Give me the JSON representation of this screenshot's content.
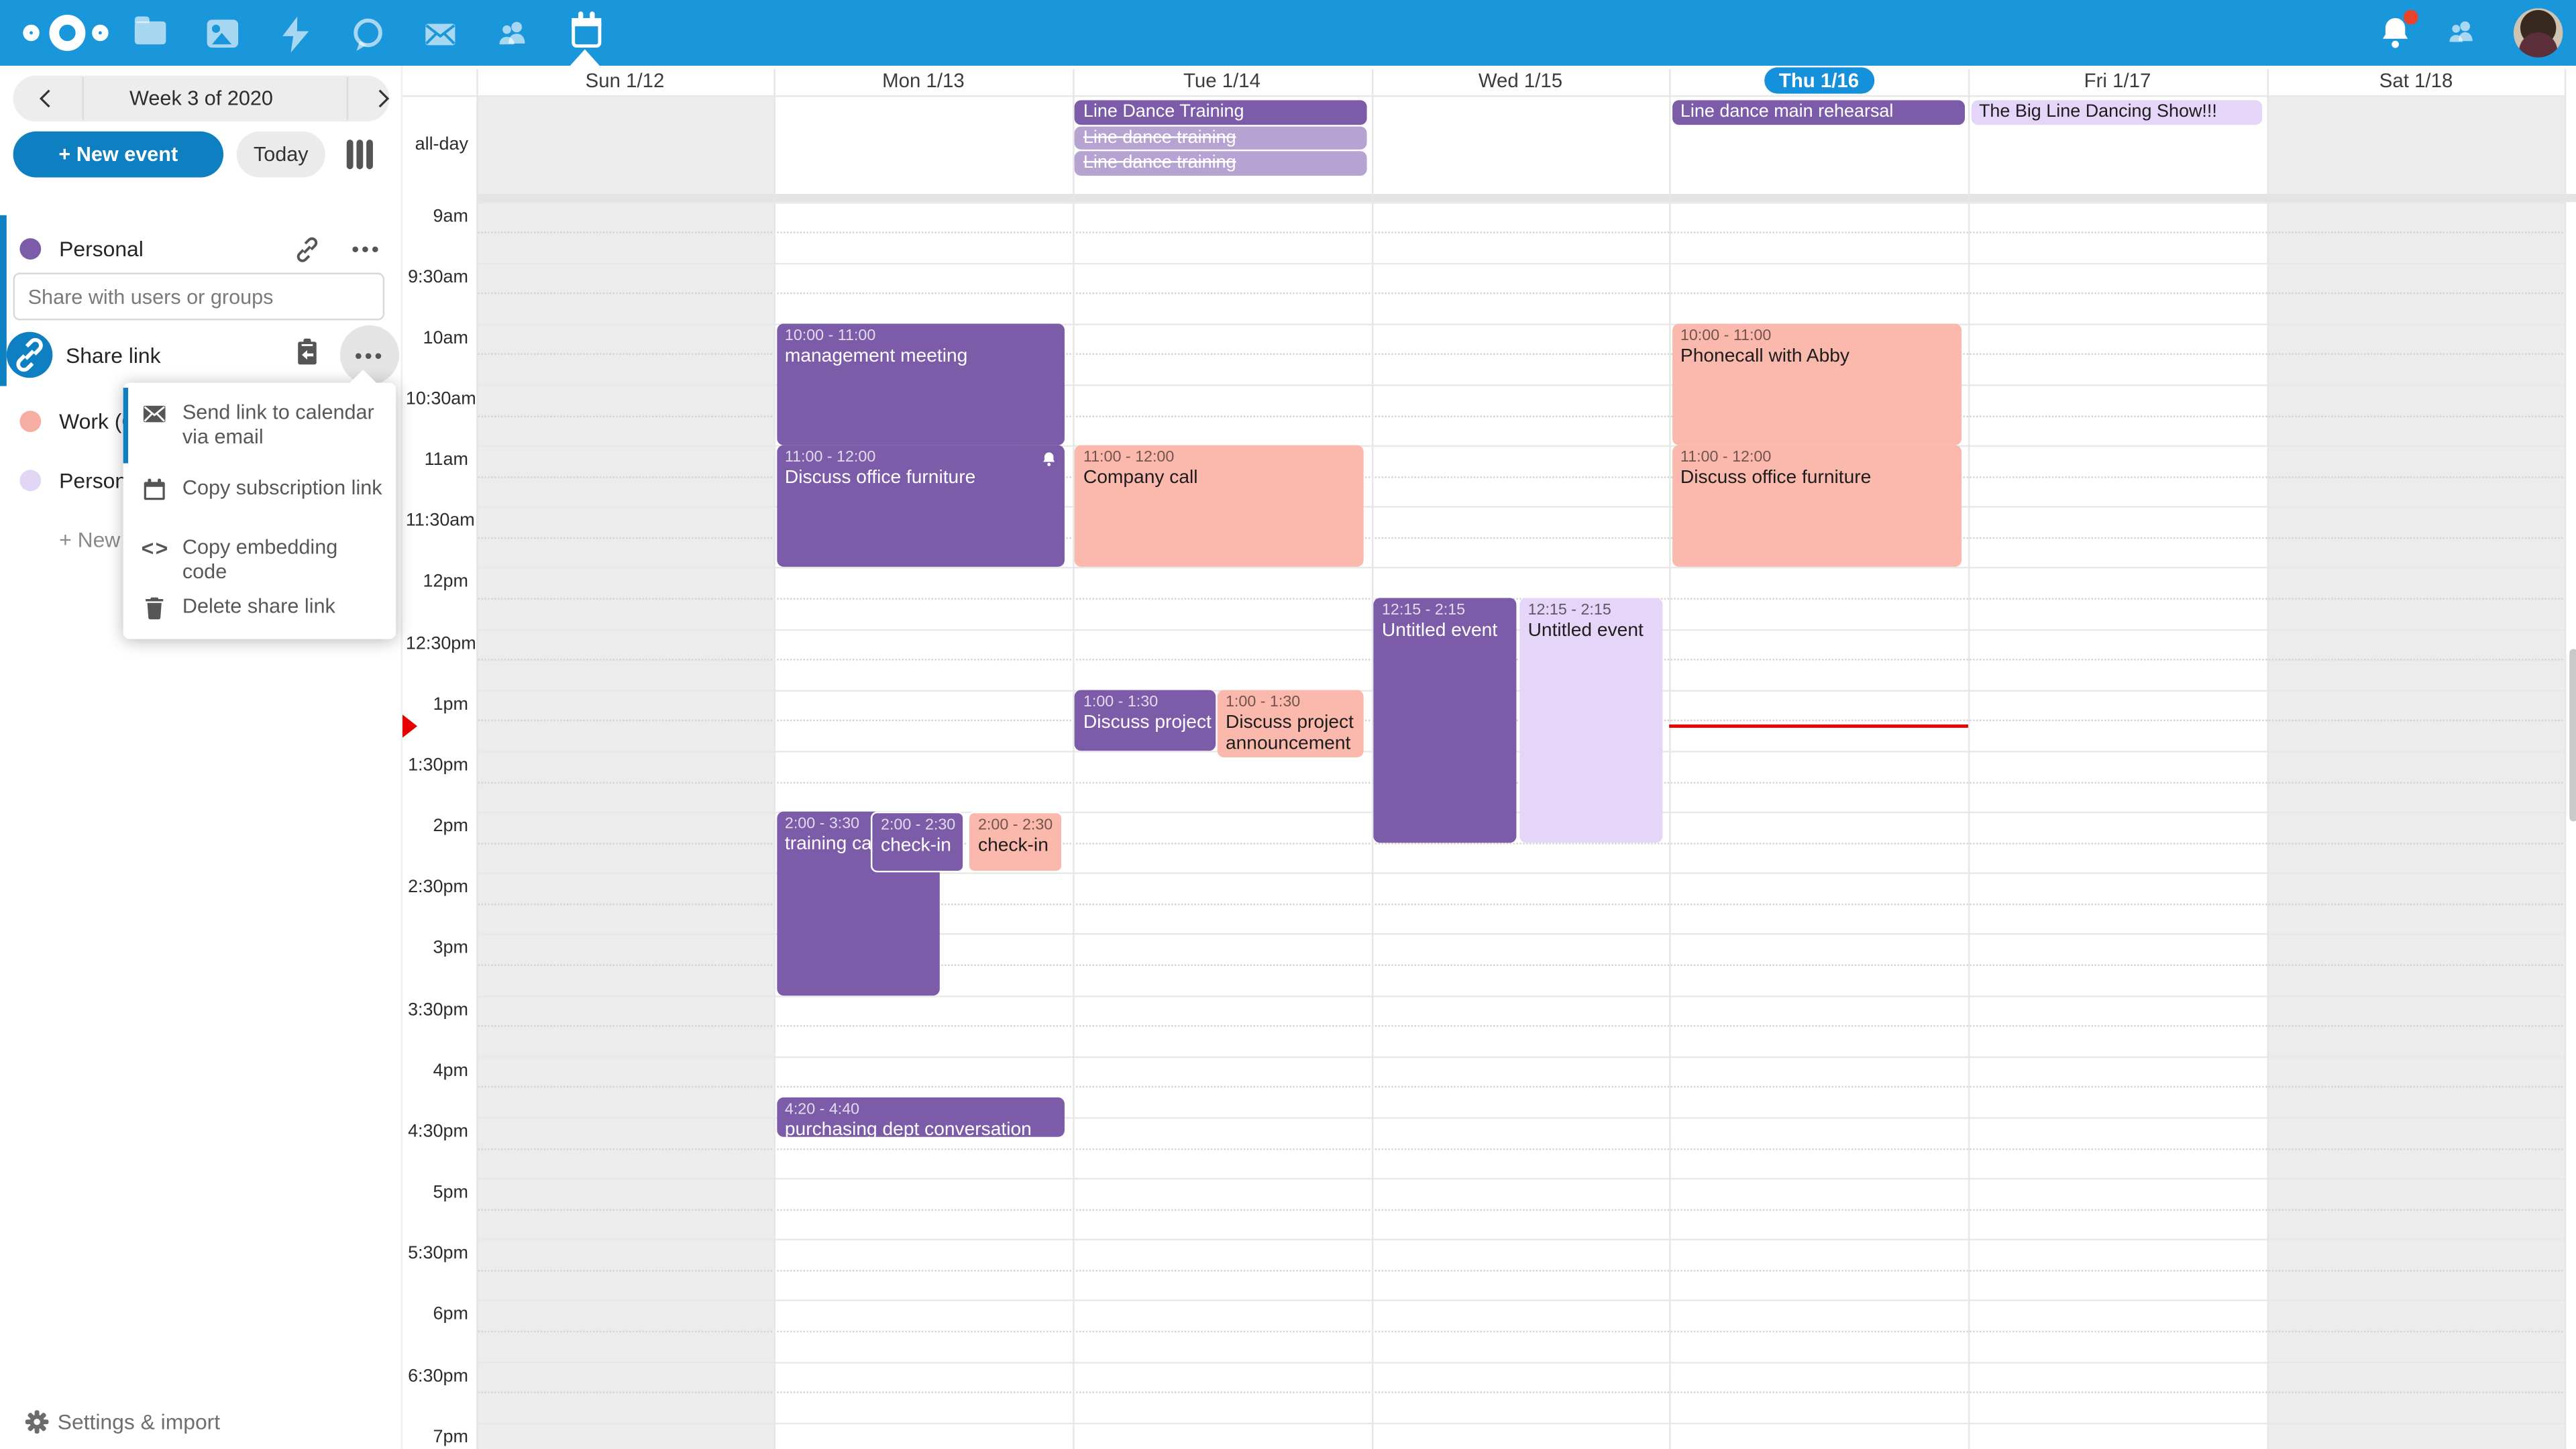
{
  "topbar": {
    "apps": [
      {
        "name": "files"
      },
      {
        "name": "photos"
      },
      {
        "name": "activity"
      },
      {
        "name": "talk"
      },
      {
        "name": "mail"
      },
      {
        "name": "contacts"
      },
      {
        "name": "calendar",
        "active": true
      }
    ],
    "has_notification_badge": true
  },
  "sidebar": {
    "week_label": "Week 3 of 2020",
    "new_event_label": "+ New event",
    "today_label": "Today",
    "personal_calendar": {
      "label": "Personal",
      "color": "#7c5ca8"
    },
    "share_input_placeholder": "Share with users or groups",
    "share_link_label": "Share link",
    "share_menu": {
      "items": [
        {
          "icon": "email-icon",
          "label": "Send link to calendar via email",
          "active": true
        },
        {
          "icon": "calendar-icon",
          "label": "Copy subscription link"
        },
        {
          "icon": "code-icon",
          "label": "Copy embedding code"
        },
        {
          "icon": "trash-icon",
          "label": "Delete share link"
        }
      ]
    },
    "other_calendars": [
      {
        "label": "Work (C",
        "color": "#f6aea3"
      },
      {
        "label": "Persona",
        "color": "#e1d6f6"
      }
    ],
    "new_calendar_label": "+ New c",
    "settings_label": "Settings & import"
  },
  "calendar": {
    "days": [
      {
        "label": "Sun 1/12"
      },
      {
        "label": "Mon 1/13"
      },
      {
        "label": "Tue 1/14"
      },
      {
        "label": "Wed 1/15"
      },
      {
        "label": "Thu 1/16"
      },
      {
        "label": "Fri 1/17"
      },
      {
        "label": "Sat 1/18"
      }
    ],
    "today_index": 4,
    "weekend_days": [
      0,
      6
    ],
    "allday_label": "all-day",
    "times": [
      "9am",
      "9:30am",
      "10am",
      "10:30am",
      "11am",
      "11:30am",
      "12pm",
      "12:30pm",
      "1pm",
      "1:30pm",
      "2pm",
      "2:30pm",
      "3pm",
      "3:30pm",
      "4pm",
      "4:30pm",
      "5pm",
      "5:30pm",
      "6pm",
      "6:30pm",
      "7pm"
    ],
    "allday_events": [
      {
        "day": 2,
        "row": 0,
        "title": "Line Dance Training",
        "style": "purple",
        "cancelled": false
      },
      {
        "day": 2,
        "row": 1,
        "title": "Line dance training",
        "style": "purple-light",
        "cancelled": true
      },
      {
        "day": 2,
        "row": 2,
        "title": "Line dance training",
        "style": "purple-light",
        "cancelled": true
      },
      {
        "day": 4,
        "row": 0,
        "title": "Line dance main rehearsal",
        "style": "purple",
        "cancelled": false
      },
      {
        "day": 5,
        "row": 0,
        "title": "The Big Line Dancing Show!!!",
        "style": "lavender",
        "cancelled": false
      }
    ],
    "events": [
      {
        "day": 1,
        "start": "10:00",
        "end": "11:00",
        "time_label": "10:00 - 11:00",
        "title": "management meeting",
        "style": "purple",
        "slot_left": 0,
        "slot_width": 1
      },
      {
        "day": 1,
        "start": "11:00",
        "end": "12:00",
        "time_label": "11:00 - 12:00",
        "title": "Discuss office furniture",
        "style": "purple",
        "slot_left": 0,
        "slot_width": 1,
        "alarm": true
      },
      {
        "day": 1,
        "start": "14:00",
        "end": "15:30",
        "time_label": "2:00 - 3:30",
        "title": "training call",
        "style": "purple",
        "slot_left": 0,
        "slot_width": 0.565
      },
      {
        "day": 1,
        "start": "14:00",
        "end": "14:30",
        "time_label": "2:00 - 2:30",
        "title": "check-in",
        "style": "purple",
        "slot_left": 0.325,
        "slot_width": 0.33,
        "outline": true
      },
      {
        "day": 1,
        "start": "14:00",
        "end": "14:30",
        "time_label": "2:00 - 2:30",
        "title": "check-in",
        "style": "salmon",
        "slot_left": 0.66,
        "slot_width": 0.33,
        "outline": true
      },
      {
        "day": 1,
        "start": "16:20",
        "end": "16:40",
        "time_label": "4:20 - 4:40",
        "title": "purchasing dept conversation",
        "style": "purple",
        "slot_left": 0,
        "slot_width": 1
      },
      {
        "day": 2,
        "start": "11:00",
        "end": "12:00",
        "time_label": "11:00 - 12:00",
        "title": "Company call",
        "style": "salmon",
        "slot_left": 0,
        "slot_width": 1
      },
      {
        "day": 2,
        "start": "13:00",
        "end": "13:30",
        "time_label": "1:00 - 1:30",
        "title": "Discuss project announcement",
        "style": "purple",
        "slot_left": 0,
        "slot_width": 0.49
      },
      {
        "day": 2,
        "start": "13:00",
        "end": "13:30",
        "time_label": "1:00 - 1:30",
        "title": "Discuss project announcement",
        "style": "salmon",
        "slot_left": 0.49,
        "slot_width": 0.51,
        "min_height": 41,
        "wrap": true
      },
      {
        "day": 3,
        "start": "12:15",
        "end": "14:15",
        "time_label": "12:15 - 2:15",
        "title": "Untitled event",
        "style": "purple",
        "slot_left": 0,
        "slot_width": 0.497
      },
      {
        "day": 3,
        "start": "12:15",
        "end": "14:15",
        "time_label": "12:15 - 2:15",
        "title": "Untitled event",
        "style": "lavender",
        "slot_left": 0.503,
        "slot_width": 0.497
      },
      {
        "day": 4,
        "start": "10:00",
        "end": "11:00",
        "time_label": "10:00 - 11:00",
        "title": "Phonecall with Abby",
        "style": "salmon",
        "slot_left": 0,
        "slot_width": 1
      },
      {
        "day": 4,
        "start": "11:00",
        "end": "12:00",
        "time_label": "11:00 - 12:00",
        "title": "Discuss office furniture",
        "style": "salmon",
        "slot_left": 0,
        "slot_width": 1
      }
    ],
    "now": {
      "day": 4,
      "time": "13:17"
    }
  },
  "colors": {
    "header_blue": "#1a96db",
    "primary_blue": "#0e7fc1",
    "today_pill_blue": "#1590da",
    "event_purple": "#7c5ca8",
    "event_purple_light": "#b6a3d2",
    "event_salmon": "#fbb9ad",
    "event_lavender": "#e5d6f9",
    "weekend_shade": "#ececec",
    "now_red": "#e60000"
  }
}
